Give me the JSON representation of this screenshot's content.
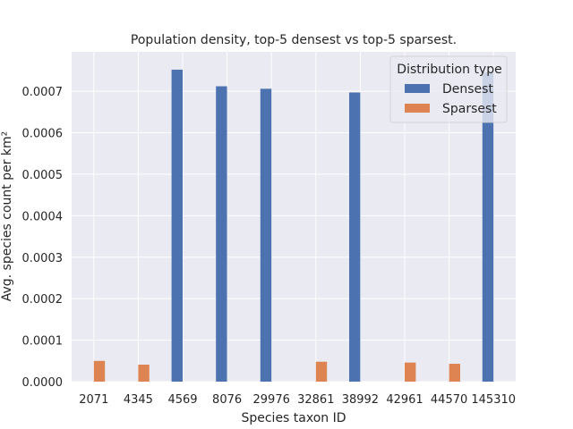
{
  "chart_data": {
    "type": "bar",
    "title": "Population density, top-5 densest vs top-5 sparsest.",
    "xlabel": "Species taxon ID",
    "ylabel": "Avg. species count per km²",
    "categories": [
      "2071",
      "4345",
      "4569",
      "8076",
      "29976",
      "32861",
      "38992",
      "42961",
      "44570",
      "145310"
    ],
    "series": [
      {
        "name": "Densest",
        "values": [
          0,
          0,
          0.000752,
          0.000712,
          0.000706,
          0,
          0.000697,
          0,
          0,
          0.000745
        ]
      },
      {
        "name": "Sparsest",
        "values": [
          5e-05,
          4.1e-05,
          0,
          0,
          0,
          4.8e-05,
          0,
          4.6e-05,
          4.3e-05,
          0
        ]
      }
    ],
    "ylim": [
      0,
      0.000795
    ],
    "yticks": [
      "0.0000",
      "0.0001",
      "0.0002",
      "0.0003",
      "0.0004",
      "0.0005",
      "0.0006",
      "0.0007"
    ],
    "legend": {
      "title": "Distribution type",
      "placement": "top-right"
    },
    "grid": true,
    "colors": {
      "Densest": "#4c72b0",
      "Sparsest": "#dd8452",
      "background": "#eaeaf2",
      "grid": "#ffffff"
    }
  }
}
